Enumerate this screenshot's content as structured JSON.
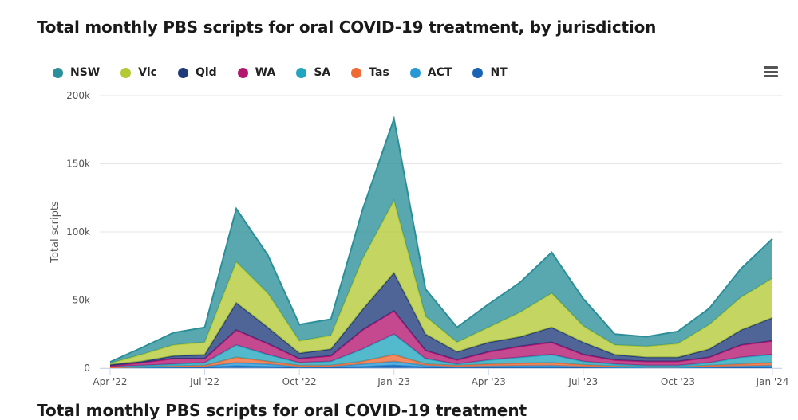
{
  "title": "Total monthly PBS scripts for oral COVID-19 treatment, by jurisdiction",
  "next_title": "Total monthly PBS scripts for oral COVID-19 treatment",
  "chart_data": {
    "type": "area",
    "stacked": true,
    "title": "Total monthly PBS scripts for oral COVID-19 treatment, by jurisdiction",
    "xlabel": "",
    "ylabel": "Total scripts",
    "ylim": [
      0,
      200000
    ],
    "yticks": [
      0,
      50000,
      100000,
      150000,
      200000
    ],
    "ytick_labels": [
      "0",
      "50k",
      "100k",
      "150k",
      "200k"
    ],
    "x": [
      "Apr '22",
      "May '22",
      "Jun '22",
      "Jul '22",
      "Aug '22",
      "Sep '22",
      "Oct '22",
      "Nov '22",
      "Dec '22",
      "Jan '23",
      "Feb '23",
      "Mar '23",
      "Apr '23",
      "May '23",
      "Jun '23",
      "Jul '23",
      "Aug '23",
      "Sep '23",
      "Oct '23",
      "Nov '23",
      "Dec '23",
      "Jan '24"
    ],
    "xtick_labels": [
      "Apr '22",
      "Jul '22",
      "Oct '22",
      "Jan '23",
      "Apr '23",
      "Jul '23",
      "Oct '23",
      "Jan '24"
    ],
    "xtick_index": [
      0,
      3,
      6,
      9,
      12,
      15,
      18,
      21
    ],
    "legend_position": "top-left",
    "grid": true,
    "series": [
      {
        "name": "NSW",
        "color": "#2a8f99",
        "values": [
          1000,
          5000,
          9000,
          11000,
          39000,
          28000,
          12000,
          12000,
          36000,
          60000,
          20000,
          11000,
          17000,
          22000,
          30000,
          20000,
          8000,
          7000,
          9000,
          12000,
          21000,
          29000
        ]
      },
      {
        "name": "Vic",
        "color": "#b5c935",
        "values": [
          1000,
          5000,
          8000,
          9000,
          30000,
          25000,
          9000,
          10000,
          37000,
          53000,
          13000,
          7000,
          11000,
          18000,
          25000,
          12000,
          7000,
          8000,
          10000,
          18000,
          24000,
          29000
        ]
      },
      {
        "name": "Qld",
        "color": "#1f3a7a",
        "values": [
          1000,
          1000,
          2000,
          3000,
          20000,
          12000,
          4000,
          5000,
          15000,
          28000,
          12000,
          6000,
          7000,
          7000,
          11000,
          9000,
          4000,
          3000,
          3000,
          6000,
          11000,
          17000
        ]
      },
      {
        "name": "WA",
        "color": "#b3166f",
        "values": [
          500,
          2000,
          4000,
          3000,
          11000,
          8000,
          3000,
          4000,
          14000,
          17000,
          6000,
          3000,
          6000,
          8000,
          9000,
          5000,
          3000,
          3000,
          3000,
          4000,
          9000,
          10000
        ]
      },
      {
        "name": "SA",
        "color": "#22a6bf",
        "values": [
          500,
          1000,
          1500,
          2000,
          9000,
          5000,
          2000,
          3000,
          9000,
          15000,
          4000,
          1000,
          3000,
          4500,
          6000,
          2500,
          1500,
          1000,
          1000,
          2000,
          5000,
          6000
        ]
      },
      {
        "name": "Tas",
        "color": "#ef6a35",
        "values": [
          200,
          300,
          500,
          800,
          4000,
          2000,
          1000,
          800,
          2000,
          5000,
          1000,
          1000,
          1500,
          1700,
          2000,
          1300,
          700,
          400,
          400,
          1000,
          1500,
          2000
        ]
      },
      {
        "name": "ACT",
        "color": "#2b98d6",
        "values": [
          200,
          400,
          600,
          700,
          2500,
          2000,
          600,
          700,
          2000,
          3000,
          1300,
          600,
          900,
          1100,
          1200,
          700,
          500,
          300,
          300,
          600,
          900,
          1200
        ]
      },
      {
        "name": "NT",
        "color": "#1a63b5",
        "values": [
          200,
          300,
          400,
          500,
          1500,
          1000,
          400,
          500,
          1000,
          2000,
          700,
          400,
          600,
          700,
          800,
          500,
          300,
          300,
          300,
          400,
          600,
          800
        ]
      }
    ]
  },
  "menu_icon": "hamburger-menu-icon"
}
